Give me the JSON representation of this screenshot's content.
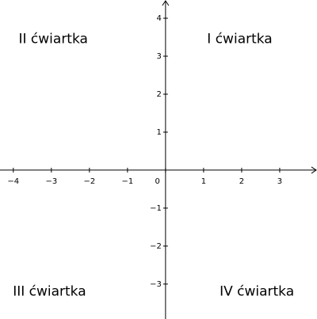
{
  "axes": {
    "xlim": [
      -4.35,
      3.98
    ],
    "ylim": [
      -3.92,
      4.48
    ],
    "xticks": [
      {
        "value": -4,
        "label": "−4"
      },
      {
        "value": -3,
        "label": "−3"
      },
      {
        "value": -2,
        "label": "−2"
      },
      {
        "value": -1,
        "label": "−1"
      },
      0,
      1,
      2,
      3
    ],
    "yticks": [
      {
        "value": -3,
        "label": "−3"
      },
      {
        "value": -2,
        "label": "−2"
      },
      {
        "value": -1,
        "label": "−1"
      },
      1,
      2,
      3,
      4
    ]
  },
  "quadrants": [
    {
      "label": "I ćwiartka",
      "x": 1.95,
      "y": 3.45
    },
    {
      "label": "II ćwiartka",
      "x": -2.95,
      "y": 3.45
    },
    {
      "label": "III ćwiartka",
      "x": -3.05,
      "y": -3.2
    },
    {
      "label": "IV ćwiartka",
      "x": 2.4,
      "y": -3.2
    }
  ]
}
